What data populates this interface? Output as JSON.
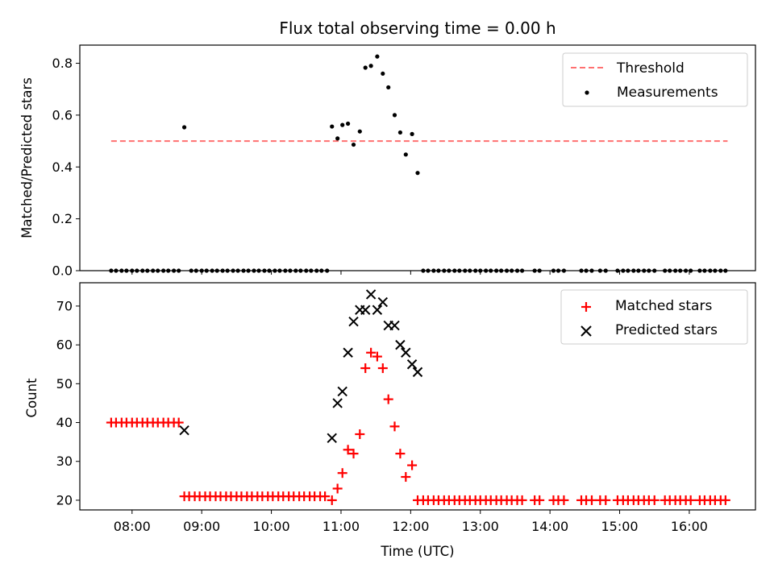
{
  "chart_data": [
    {
      "type": "scatter",
      "title": "Flux total observing time = 0.00 h",
      "xlabel": "",
      "ylabel": "Matched/Predicted stars",
      "xlim": [
        7.25,
        16.95
      ],
      "ylim": [
        0.0,
        0.87
      ],
      "yticks": [
        0.0,
        0.2,
        0.4,
        0.6,
        0.8
      ],
      "ytick_labels": [
        "0.0",
        "0.2",
        "0.4",
        "0.6",
        "0.8"
      ],
      "legend": {
        "location": "top-right",
        "entries": [
          {
            "label": "Threshold",
            "kind": "dashed-line",
            "color": "#ff7070"
          },
          {
            "label": "Measurements",
            "kind": "dot",
            "color": "#000000"
          }
        ]
      },
      "threshold": {
        "name": "Threshold",
        "y": 0.5,
        "x_range": [
          7.7,
          16.55
        ],
        "color": "#ff7070"
      },
      "series": [
        {
          "name": "Measurements",
          "color": "#000000",
          "points": [
            [
              7.7,
              0
            ],
            [
              7.77,
              0
            ],
            [
              7.85,
              0
            ],
            [
              7.92,
              0
            ],
            [
              8.0,
              0
            ],
            [
              8.07,
              0
            ],
            [
              8.15,
              0
            ],
            [
              8.22,
              0
            ],
            [
              8.3,
              0
            ],
            [
              8.37,
              0
            ],
            [
              8.45,
              0
            ],
            [
              8.52,
              0
            ],
            [
              8.6,
              0
            ],
            [
              8.67,
              0
            ],
            [
              8.75,
              0.553
            ],
            [
              8.85,
              0
            ],
            [
              8.92,
              0
            ],
            [
              9.0,
              0
            ],
            [
              9.07,
              0
            ],
            [
              9.15,
              0
            ],
            [
              9.22,
              0
            ],
            [
              9.3,
              0
            ],
            [
              9.37,
              0
            ],
            [
              9.45,
              0
            ],
            [
              9.52,
              0
            ],
            [
              9.6,
              0
            ],
            [
              9.67,
              0
            ],
            [
              9.75,
              0
            ],
            [
              9.82,
              0
            ],
            [
              9.9,
              0
            ],
            [
              9.97,
              0
            ],
            [
              10.05,
              0
            ],
            [
              10.12,
              0
            ],
            [
              10.2,
              0
            ],
            [
              10.27,
              0
            ],
            [
              10.35,
              0
            ],
            [
              10.42,
              0
            ],
            [
              10.5,
              0
            ],
            [
              10.57,
              0
            ],
            [
              10.65,
              0
            ],
            [
              10.72,
              0
            ],
            [
              10.8,
              0
            ],
            [
              10.87,
              0.556
            ],
            [
              10.95,
              0.51
            ],
            [
              11.02,
              0.562
            ],
            [
              11.1,
              0.567
            ],
            [
              11.18,
              0.486
            ],
            [
              11.27,
              0.537
            ],
            [
              11.35,
              0.783
            ],
            [
              11.43,
              0.79
            ],
            [
              11.52,
              0.826
            ],
            [
              11.6,
              0.76
            ],
            [
              11.68,
              0.707
            ],
            [
              11.77,
              0.6
            ],
            [
              11.85,
              0.533
            ],
            [
              11.93,
              0.448
            ],
            [
              12.02,
              0.527
            ],
            [
              12.1,
              0.377
            ],
            [
              12.18,
              0
            ],
            [
              12.25,
              0
            ],
            [
              12.33,
              0
            ],
            [
              12.4,
              0
            ],
            [
              12.48,
              0
            ],
            [
              12.55,
              0
            ],
            [
              12.63,
              0
            ],
            [
              12.7,
              0
            ],
            [
              12.78,
              0
            ],
            [
              12.85,
              0
            ],
            [
              12.93,
              0
            ],
            [
              13.0,
              0
            ],
            [
              13.08,
              0
            ],
            [
              13.15,
              0
            ],
            [
              13.23,
              0
            ],
            [
              13.3,
              0
            ],
            [
              13.38,
              0
            ],
            [
              13.45,
              0
            ],
            [
              13.53,
              0
            ],
            [
              13.6,
              0
            ],
            [
              13.78,
              0
            ],
            [
              13.85,
              0
            ],
            [
              14.05,
              0
            ],
            [
              14.12,
              0
            ],
            [
              14.2,
              0
            ],
            [
              14.45,
              0
            ],
            [
              14.52,
              0
            ],
            [
              14.6,
              0
            ],
            [
              14.72,
              0
            ],
            [
              14.8,
              0
            ],
            [
              14.97,
              0
            ],
            [
              15.05,
              0
            ],
            [
              15.12,
              0
            ],
            [
              15.2,
              0
            ],
            [
              15.27,
              0
            ],
            [
              15.35,
              0
            ],
            [
              15.42,
              0
            ],
            [
              15.5,
              0
            ],
            [
              15.65,
              0
            ],
            [
              15.72,
              0
            ],
            [
              15.8,
              0
            ],
            [
              15.87,
              0
            ],
            [
              15.95,
              0
            ],
            [
              16.02,
              0
            ],
            [
              16.15,
              0
            ],
            [
              16.22,
              0
            ],
            [
              16.3,
              0
            ],
            [
              16.37,
              0
            ],
            [
              16.45,
              0
            ],
            [
              16.52,
              0
            ]
          ]
        }
      ]
    },
    {
      "type": "scatter",
      "title": "",
      "xlabel": "Time (UTC)",
      "ylabel": "Count",
      "xlim": [
        7.25,
        16.95
      ],
      "ylim": [
        17.5,
        76
      ],
      "yticks": [
        20,
        30,
        40,
        50,
        60,
        70
      ],
      "ytick_labels": [
        "20",
        "30",
        "40",
        "50",
        "60",
        "70"
      ],
      "xticks": [
        8,
        9,
        10,
        11,
        12,
        13,
        14,
        15,
        16
      ],
      "xtick_labels": [
        "08:00",
        "09:00",
        "10:00",
        "11:00",
        "12:00",
        "13:00",
        "14:00",
        "15:00",
        "16:00"
      ],
      "legend": {
        "location": "top-right",
        "entries": [
          {
            "label": "Matched stars",
            "kind": "plus",
            "color": "#ff0000"
          },
          {
            "label": "Predicted stars",
            "kind": "x",
            "color": "#000000"
          }
        ]
      },
      "series": [
        {
          "name": "Matched stars",
          "marker": "plus",
          "color": "#ff0000",
          "points": [
            [
              7.7,
              40
            ],
            [
              7.77,
              40
            ],
            [
              7.85,
              40
            ],
            [
              7.92,
              40
            ],
            [
              8.0,
              40
            ],
            [
              8.07,
              40
            ],
            [
              8.15,
              40
            ],
            [
              8.22,
              40
            ],
            [
              8.3,
              40
            ],
            [
              8.37,
              40
            ],
            [
              8.45,
              40
            ],
            [
              8.52,
              40
            ],
            [
              8.6,
              40
            ],
            [
              8.67,
              40
            ],
            [
              8.75,
              21
            ],
            [
              8.82,
              21
            ],
            [
              8.9,
              21
            ],
            [
              8.97,
              21
            ],
            [
              9.05,
              21
            ],
            [
              9.12,
              21
            ],
            [
              9.2,
              21
            ],
            [
              9.27,
              21
            ],
            [
              9.35,
              21
            ],
            [
              9.42,
              21
            ],
            [
              9.5,
              21
            ],
            [
              9.57,
              21
            ],
            [
              9.65,
              21
            ],
            [
              9.72,
              21
            ],
            [
              9.8,
              21
            ],
            [
              9.87,
              21
            ],
            [
              9.95,
              21
            ],
            [
              10.02,
              21
            ],
            [
              10.1,
              21
            ],
            [
              10.17,
              21
            ],
            [
              10.25,
              21
            ],
            [
              10.32,
              21
            ],
            [
              10.4,
              21
            ],
            [
              10.47,
              21
            ],
            [
              10.55,
              21
            ],
            [
              10.62,
              21
            ],
            [
              10.7,
              21
            ],
            [
              10.77,
              21
            ],
            [
              10.87,
              20
            ],
            [
              10.95,
              23
            ],
            [
              11.02,
              27
            ],
            [
              11.1,
              33
            ],
            [
              11.18,
              32
            ],
            [
              11.27,
              37
            ],
            [
              11.35,
              54
            ],
            [
              11.43,
              58
            ],
            [
              11.52,
              57
            ],
            [
              11.6,
              54
            ],
            [
              11.68,
              46
            ],
            [
              11.77,
              39
            ],
            [
              11.85,
              32
            ],
            [
              11.93,
              26
            ],
            [
              12.02,
              29
            ],
            [
              12.1,
              20
            ],
            [
              12.18,
              20
            ],
            [
              12.25,
              20
            ],
            [
              12.33,
              20
            ],
            [
              12.4,
              20
            ],
            [
              12.48,
              20
            ],
            [
              12.55,
              20
            ],
            [
              12.63,
              20
            ],
            [
              12.7,
              20
            ],
            [
              12.78,
              20
            ],
            [
              12.85,
              20
            ],
            [
              12.93,
              20
            ],
            [
              13.0,
              20
            ],
            [
              13.08,
              20
            ],
            [
              13.15,
              20
            ],
            [
              13.23,
              20
            ],
            [
              13.3,
              20
            ],
            [
              13.38,
              20
            ],
            [
              13.45,
              20
            ],
            [
              13.53,
              20
            ],
            [
              13.6,
              20
            ],
            [
              13.78,
              20
            ],
            [
              13.85,
              20
            ],
            [
              14.05,
              20
            ],
            [
              14.12,
              20
            ],
            [
              14.2,
              20
            ],
            [
              14.45,
              20
            ],
            [
              14.52,
              20
            ],
            [
              14.6,
              20
            ],
            [
              14.72,
              20
            ],
            [
              14.8,
              20
            ],
            [
              14.97,
              20
            ],
            [
              15.05,
              20
            ],
            [
              15.12,
              20
            ],
            [
              15.2,
              20
            ],
            [
              15.27,
              20
            ],
            [
              15.35,
              20
            ],
            [
              15.42,
              20
            ],
            [
              15.5,
              20
            ],
            [
              15.65,
              20
            ],
            [
              15.72,
              20
            ],
            [
              15.8,
              20
            ],
            [
              15.87,
              20
            ],
            [
              15.95,
              20
            ],
            [
              16.02,
              20
            ],
            [
              16.15,
              20
            ],
            [
              16.22,
              20
            ],
            [
              16.3,
              20
            ],
            [
              16.37,
              20
            ],
            [
              16.45,
              20
            ],
            [
              16.52,
              20
            ]
          ]
        },
        {
          "name": "Predicted stars",
          "marker": "x",
          "color": "#000000",
          "points": [
            [
              8.75,
              38
            ],
            [
              10.87,
              36
            ],
            [
              10.95,
              45
            ],
            [
              11.02,
              48
            ],
            [
              11.1,
              58
            ],
            [
              11.18,
              66
            ],
            [
              11.27,
              69
            ],
            [
              11.35,
              69
            ],
            [
              11.43,
              73
            ],
            [
              11.52,
              69
            ],
            [
              11.6,
              71
            ],
            [
              11.68,
              65
            ],
            [
              11.77,
              65
            ],
            [
              11.85,
              60
            ],
            [
              11.93,
              58
            ],
            [
              12.02,
              55
            ],
            [
              12.1,
              53
            ]
          ]
        }
      ]
    }
  ]
}
